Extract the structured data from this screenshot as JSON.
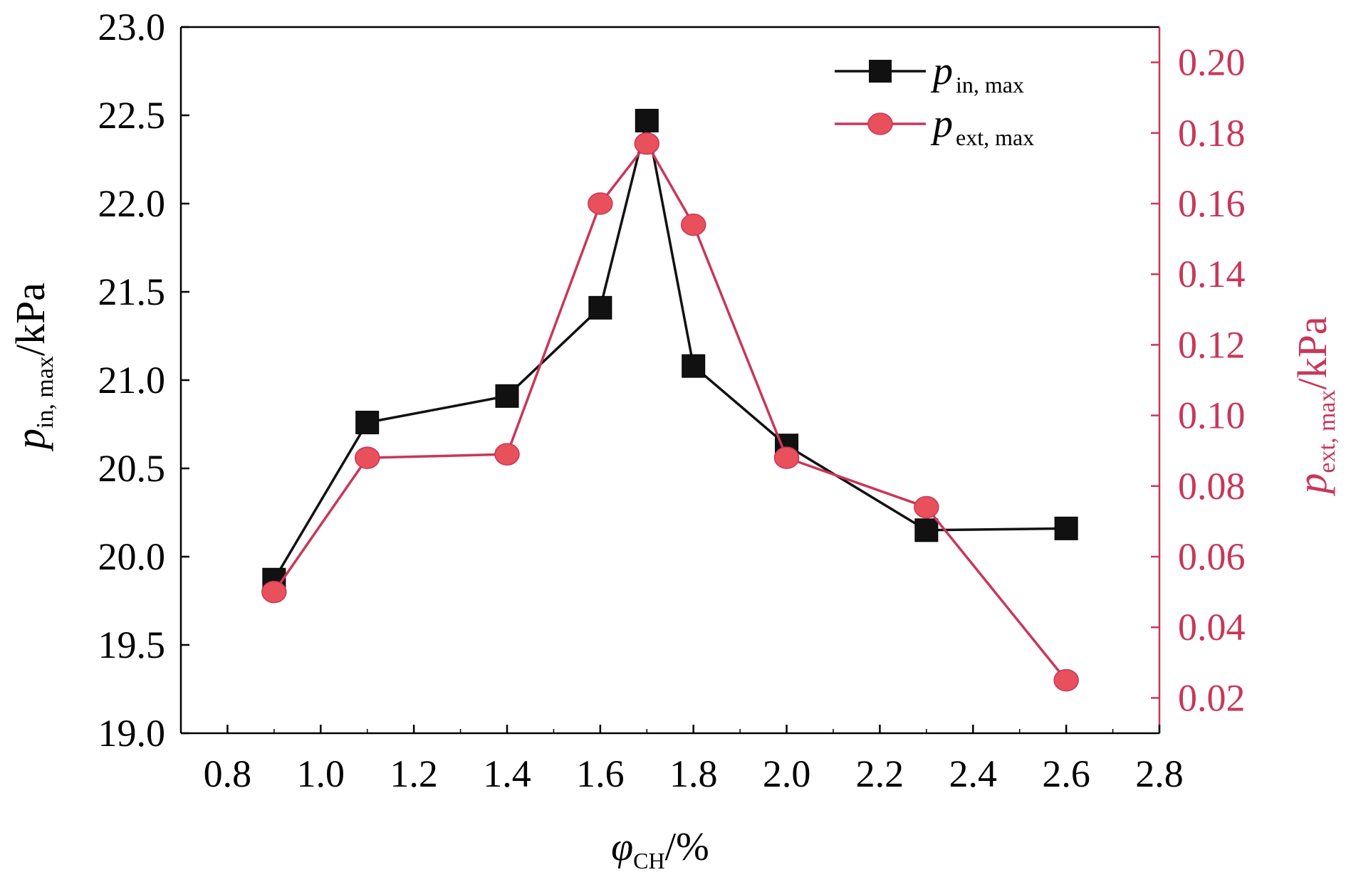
{
  "colors": {
    "left_axis": "#000000",
    "right_axis": "#c8375a",
    "series_in": "#111111",
    "series_ext_line": "#c8375a",
    "series_ext_marker": "#e8505b"
  },
  "chart_data": {
    "type": "line",
    "xlabel": {
      "main": "φ",
      "sub": "CH",
      "unit": "/%"
    },
    "ylabel_left": {
      "main": "p",
      "sub": "in, max",
      "unit": "/kPa"
    },
    "ylabel_right": {
      "main": "p",
      "sub": "ext, max",
      "unit": "/kPa"
    },
    "xlim": [
      0.7,
      2.8
    ],
    "ylim_left": [
      19.0,
      23.0
    ],
    "ylim_right": [
      0.01,
      0.21
    ],
    "x_ticks": [
      "0.8",
      "1.0",
      "1.2",
      "1.4",
      "1.6",
      "1.8",
      "2.0",
      "2.2",
      "2.4",
      "2.6",
      "2.8"
    ],
    "y_left_ticks": [
      "19.0",
      "19.5",
      "20.0",
      "20.5",
      "21.0",
      "21.5",
      "22.0",
      "22.5",
      "23.0"
    ],
    "y_right_ticks": [
      "0.02",
      "0.04",
      "0.06",
      "0.08",
      "0.10",
      "0.12",
      "0.14",
      "0.16",
      "0.18",
      "0.20"
    ],
    "legend_position": "top-right",
    "series": [
      {
        "name": "p",
        "name_sub": "in, max",
        "axis": "left",
        "marker": "square",
        "x": [
          0.9,
          1.1,
          1.4,
          1.6,
          1.7,
          1.8,
          2.0,
          2.3,
          2.6
        ],
        "values": [
          19.87,
          20.76,
          20.91,
          21.41,
          22.47,
          21.08,
          20.63,
          20.15,
          20.16
        ]
      },
      {
        "name": "p",
        "name_sub": "ext, max",
        "axis": "right",
        "marker": "circle",
        "x": [
          0.9,
          1.1,
          1.4,
          1.6,
          1.7,
          1.8,
          2.0,
          2.3,
          2.6
        ],
        "values": [
          0.05,
          0.088,
          0.089,
          0.16,
          0.177,
          0.154,
          0.088,
          0.074,
          0.025
        ]
      }
    ]
  }
}
